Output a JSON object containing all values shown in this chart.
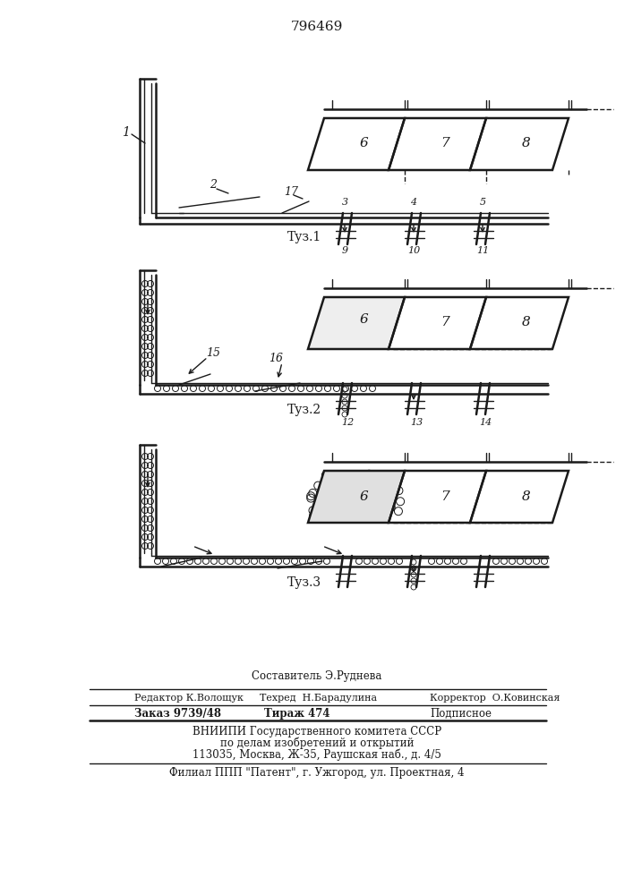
{
  "patent_number": "796469",
  "fig1_label": "Τуз.1",
  "fig2_label": "Τуз.2",
  "fig3_label": "Τуз.3",
  "footer_line1": "Составитель Э.Руднева",
  "footer_line2_left": "Редактор К.Волощук",
  "footer_line2_mid": "Техред  Н.Барадулина",
  "footer_line2_right": "Корректор  О.Ковинская",
  "footer_line3_left": "Заказ 9739/48",
  "footer_line3_mid": "Тираж 474",
  "footer_line3_right": "Подписное",
  "footer_line4": "ВНИИПИ Государственного комитета СССР",
  "footer_line5": "по делам изобретений и открытий",
  "footer_line6": "113035, Москва, Ж-35, Раушская наб., д. 4/5",
  "footer_line7": "Филиал ППП \"Патент\", г. Ужгород, ул. Проектная, 4",
  "bg_color": "#ffffff",
  "line_color": "#1a1a1a"
}
